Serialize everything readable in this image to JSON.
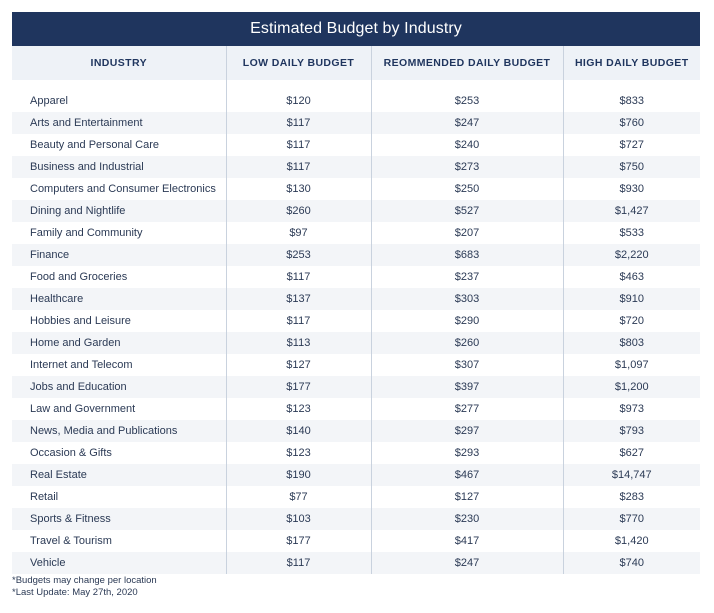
{
  "title": "Estimated Budget by Industry",
  "columns": [
    "INDUSTRY",
    "LOW DAILY BUDGET",
    "REOMMENDED DAILY BUDGET",
    "HIGH DAILY BUDGET"
  ],
  "rows": [
    [
      "Apparel",
      "$120",
      "$253",
      "$833"
    ],
    [
      "Arts and Entertainment",
      "$117",
      "$247",
      "$760"
    ],
    [
      "Beauty and Personal Care",
      "$117",
      "$240",
      "$727"
    ],
    [
      "Business and Industrial",
      "$117",
      "$273",
      "$750"
    ],
    [
      "Computers and Consumer Electronics",
      "$130",
      "$250",
      "$930"
    ],
    [
      "Dining and Nightlife",
      "$260",
      "$527",
      "$1,427"
    ],
    [
      "Family and Community",
      "$97",
      "$207",
      "$533"
    ],
    [
      "Finance",
      "$253",
      "$683",
      "$2,220"
    ],
    [
      "Food and Groceries",
      "$117",
      "$237",
      "$463"
    ],
    [
      "Healthcare",
      "$137",
      "$303",
      "$910"
    ],
    [
      "Hobbies and Leisure",
      "$117",
      "$290",
      "$720"
    ],
    [
      "Home and Garden",
      "$113",
      "$260",
      "$803"
    ],
    [
      "Internet and Telecom",
      "$127",
      "$307",
      "$1,097"
    ],
    [
      "Jobs and Education",
      "$177",
      "$397",
      "$1,200"
    ],
    [
      "Law and Government",
      "$123",
      "$277",
      "$973"
    ],
    [
      "News, Media and Publications",
      "$140",
      "$297",
      "$793"
    ],
    [
      "Occasion & Gifts",
      "$123",
      "$293",
      "$627"
    ],
    [
      "Real Estate",
      "$190",
      "$467",
      "$14,747"
    ],
    [
      "Retail",
      "$77",
      "$127",
      "$283"
    ],
    [
      "Sports & Fitness",
      "$103",
      "$230",
      "$770"
    ],
    [
      "Travel & Tourism",
      "$177",
      "$417",
      "$1,420"
    ],
    [
      "Vehicle",
      "$117",
      "$247",
      "$740"
    ]
  ],
  "notes": [
    "*Budgets may change per location",
    "*Last Update: May 27th, 2020"
  ],
  "colors": {
    "header_bar": "#1f355e",
    "column_header_bg": "#eef2f7",
    "stripe": "#f3f5f8",
    "text": "#2b3a55"
  }
}
